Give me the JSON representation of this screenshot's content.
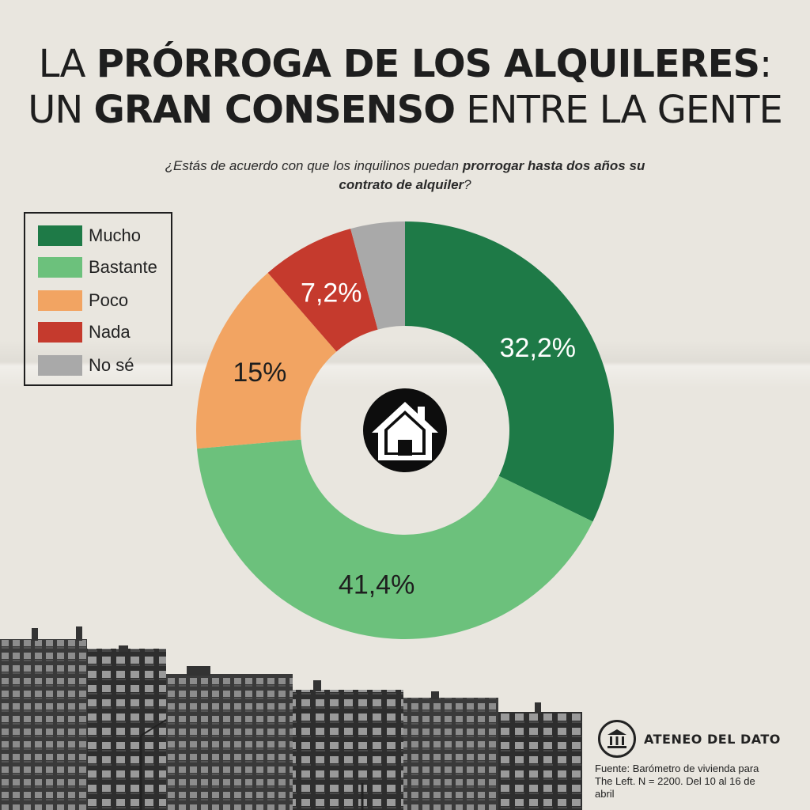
{
  "title": {
    "line1_light": "LA ",
    "line1_bold": "PRÓRROGA DE LOS ALQUILERES",
    "line1_end": ":",
    "line2_light": "UN ",
    "line2_bold": "GRAN CONSENSO",
    "line2_end": " ENTRE LA GENTE"
  },
  "question": {
    "part1": "¿Estás de acuerdo con que los inquilinos puedan ",
    "bold": "prorrogar hasta dos años su contrato de alquiler",
    "part2": "?"
  },
  "chart_data": {
    "type": "pie",
    "variant": "donut",
    "title": "¿Estás de acuerdo con que los inquilinos puedan prorrogar hasta dos años su contrato de alquiler?",
    "legend_position": "top-left",
    "categories": [
      "Mucho",
      "Bastante",
      "Poco",
      "Nada",
      "No sé"
    ],
    "values": [
      32.2,
      41.4,
      15.0,
      7.2,
      4.2
    ],
    "labels": [
      "32,2%",
      "41,4%",
      "15%",
      "7,2%",
      ""
    ],
    "colors": [
      "#1e7a47",
      "#6cc17c",
      "#f2a462",
      "#c53a2d",
      "#a9a9a9"
    ],
    "label_colors": [
      "#ffffff",
      "#1e1e1e",
      "#1e1e1e",
      "#ffffff",
      "#ffffff"
    ]
  },
  "center_icon": "house-icon",
  "logo": {
    "name": "ATENEO DEL DATO",
    "icon": "columns-building-icon"
  },
  "source": "Fuente: Barómetro de vivienda para The Left. N = 2200. Del 10 al 16 de abril"
}
